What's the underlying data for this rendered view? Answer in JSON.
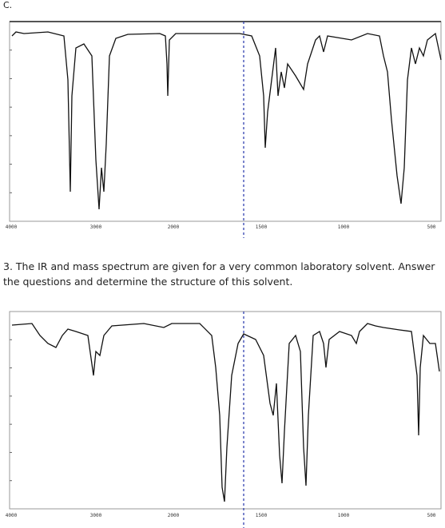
{
  "header": {
    "label": "C."
  },
  "question": "3. The IR and mass spectrum are given for a very common laboratory solvent.  Answer the questions and determine the structure of this solvent.",
  "figures": [
    {
      "x_labels": [
        "4000",
        "3000",
        "2000",
        "1500",
        "1000",
        "500"
      ]
    },
    {
      "x_labels": [
        "4000",
        "3000",
        "2000",
        "1500",
        "1000",
        "500"
      ]
    }
  ]
}
